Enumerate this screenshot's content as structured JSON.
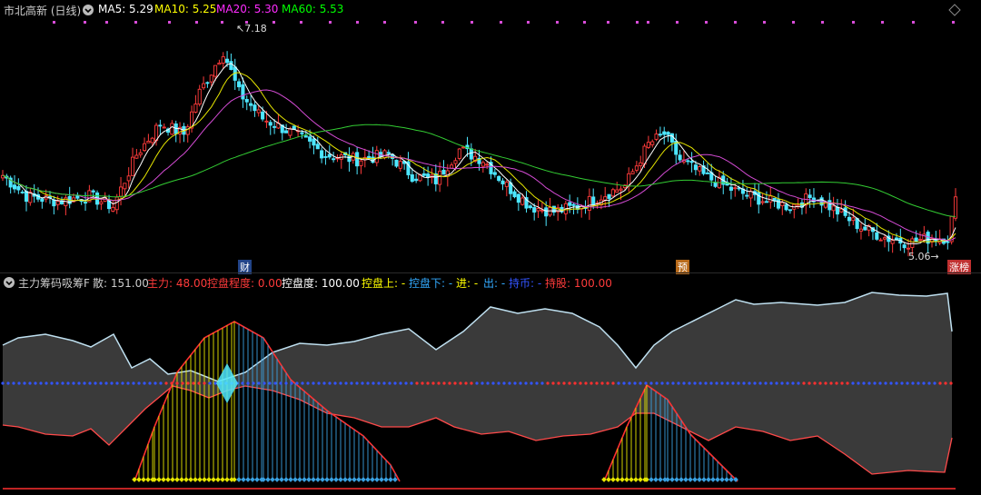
{
  "panel1": {
    "stock_title": "市北高新 (日线)",
    "ma": [
      {
        "label": "MA5: 5.29",
        "color": "#ffffff"
      },
      {
        "label": "MA10: 5.25",
        "color": "#ffff00"
      },
      {
        "label": "MA20: 5.30",
        "color": "#ff2cff"
      },
      {
        "label": "MA60: 5.53",
        "color": "#00ff00"
      }
    ],
    "high_label": "7.18",
    "low_label": "5.06",
    "tag_cai": "财",
    "tag_yu": "预",
    "tag_zhangting": "涨榜",
    "colors": {
      "up": "#ff3b3b",
      "down": "#4de6ff",
      "ma5": "#ffffff",
      "ma10": "#e6e600",
      "ma20": "#d34bd3",
      "ma60": "#33cc33"
    }
  },
  "panel2": {
    "name": "主力筹码吸筹F",
    "items": [
      {
        "label": "散: 151.00",
        "color": "#cccccc"
      },
      {
        "label": "主力: 48.00",
        "color": "#ff3b3b"
      },
      {
        "label": "控盘程度: 0.00",
        "color": "#ff3b3b"
      },
      {
        "label": "控盘度: 100.00",
        "color": "#ffffff"
      },
      {
        "label": "控盘上: -",
        "color": "#ffff00"
      },
      {
        "label": "控盘下: -",
        "color": "#33aaff"
      },
      {
        "label": "进: -",
        "color": "#ffff00"
      },
      {
        "label": "出: -",
        "color": "#33aaff"
      },
      {
        "label": "持币: -",
        "color": "#3355ff"
      },
      {
        "label": "持股: 100.00",
        "color": "#ff3b3b"
      }
    ]
  }
}
